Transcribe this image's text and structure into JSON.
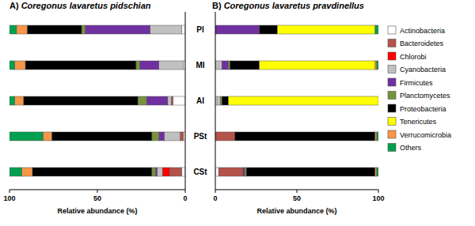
{
  "chart_data": [
    {
      "type": "bar",
      "orientation": "horizontal",
      "stacked": true,
      "title": "A) Coregonus lavaretus pidschian",
      "x_label": "Relative abundance (%)",
      "categories": [
        "Pl",
        "MI",
        "AI",
        "PSt",
        "CSt"
      ],
      "xlim": [
        100,
        0
      ],
      "xticks": [
        0,
        50,
        100
      ],
      "grid": false,
      "legend": "right",
      "series": [
        {
          "name": "Actinobacteria",
          "color": "#ffffff",
          "values": [
            2,
            1,
            7,
            1,
            2
          ]
        },
        {
          "name": "Bacteroidetes",
          "color": "#b5524a",
          "values": [
            0,
            0,
            1,
            2,
            7
          ]
        },
        {
          "name": "Chlorobi",
          "color": "#ff0000",
          "values": [
            0,
            0,
            0,
            0,
            4
          ]
        },
        {
          "name": "Cyanobacteria",
          "color": "#c0c0c0",
          "values": [
            18,
            14,
            2,
            9,
            3
          ]
        },
        {
          "name": "Firmicutes",
          "color": "#7030a0",
          "values": [
            37,
            11,
            12,
            3,
            1
          ]
        },
        {
          "name": "Planctomycetes",
          "color": "#77933c",
          "values": [
            2,
            2,
            5,
            4,
            2
          ]
        },
        {
          "name": "Proteobacteria",
          "color": "#000000",
          "values": [
            31,
            63,
            65,
            57,
            68
          ]
        },
        {
          "name": "Tenericutes",
          "color": "#ffff00",
          "values": [
            0,
            0,
            0,
            0,
            0
          ]
        },
        {
          "name": "Verrucomicrobia",
          "color": "#f79646",
          "values": [
            6,
            6,
            5,
            5,
            6
          ]
        },
        {
          "name": "Others",
          "color": "#00a050",
          "values": [
            4,
            3,
            3,
            19,
            7
          ]
        }
      ]
    },
    {
      "type": "bar",
      "orientation": "horizontal",
      "stacked": true,
      "title": "B) Coregonus lavaretus pravdinellus",
      "x_label": "Relative abundance (%)",
      "categories": [
        "Pl",
        "MI",
        "AI",
        "PSt",
        "CSt"
      ],
      "xlim": [
        0,
        100
      ],
      "xticks": [
        0,
        50,
        100
      ],
      "grid": false,
      "series": [
        {
          "name": "Actinobacteria",
          "color": "#ffffff",
          "values": [
            0,
            0,
            1,
            0,
            2
          ]
        },
        {
          "name": "Bacteroidetes",
          "color": "#b5524a",
          "values": [
            0,
            0,
            0,
            12,
            15
          ]
        },
        {
          "name": "Chlorobi",
          "color": "#ff0000",
          "values": [
            0,
            0,
            0,
            0,
            0
          ]
        },
        {
          "name": "Cyanobacteria",
          "color": "#c0c0c0",
          "values": [
            0,
            4,
            2,
            0,
            0
          ]
        },
        {
          "name": "Firmicutes",
          "color": "#7030a0",
          "values": [
            27,
            4,
            0,
            0,
            1
          ]
        },
        {
          "name": "Planctomycetes",
          "color": "#77933c",
          "values": [
            0,
            1,
            1,
            0,
            1
          ]
        },
        {
          "name": "Proteobacteria",
          "color": "#000000",
          "values": [
            11,
            18,
            4,
            86,
            79
          ]
        },
        {
          "name": "Tenericutes",
          "color": "#ffff00",
          "values": [
            60,
            71,
            92,
            0,
            0
          ]
        },
        {
          "name": "Verrucomicrobia",
          "color": "#f79646",
          "values": [
            0,
            1,
            0,
            1,
            1
          ]
        },
        {
          "name": "Others",
          "color": "#00a050",
          "values": [
            2,
            1,
            0,
            1,
            1
          ]
        }
      ]
    }
  ]
}
